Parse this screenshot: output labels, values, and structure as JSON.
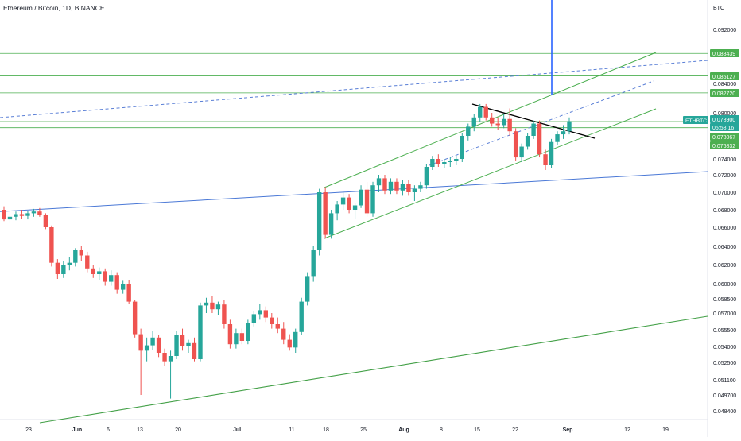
{
  "chart_data": {
    "type": "candlestick",
    "title": "Ethereum / Bitcoin, 1D, BINANCE",
    "y_axis_unit": "BTC",
    "y_ticks": [
      "0.092000",
      "0.084000",
      "0.080000",
      "0.074000",
      "0.072000",
      "0.070000",
      "0.068000",
      "0.066000",
      "0.064000",
      "0.062000",
      "0.060000",
      "0.058500",
      "0.057000",
      "0.055500",
      "0.054000",
      "0.052500",
      "0.051100",
      "0.049700",
      "0.048400"
    ],
    "x_ticks": [
      "23",
      "Jun",
      "6",
      "13",
      "20",
      "Jul",
      "11",
      "18",
      "25",
      "Aug",
      "8",
      "15",
      "22",
      "Sep",
      "12",
      "19"
    ],
    "price_labels": [
      {
        "text": "0.088439",
        "kind": "level"
      },
      {
        "text": "0.085127",
        "kind": "level"
      },
      {
        "text": "0.082720",
        "kind": "level"
      },
      {
        "text": "0.078900",
        "kind": "current"
      },
      {
        "text": "05:58:16",
        "kind": "timer"
      },
      {
        "text": "0.078067",
        "kind": "level"
      },
      {
        "text": "0.076832",
        "kind": "level"
      }
    ],
    "symbol_tag": "ETHBTC",
    "horizontal_levels": [
      0.088439,
      0.085127,
      0.08272,
      0.0789,
      0.078067,
      0.076832
    ],
    "candles": [
      {
        "o": 0.068,
        "h": 0.0684,
        "l": 0.0667,
        "c": 0.0669
      },
      {
        "o": 0.0669,
        "h": 0.0675,
        "l": 0.0665,
        "c": 0.0672
      },
      {
        "o": 0.0672,
        "h": 0.0678,
        "l": 0.0668,
        "c": 0.0675
      },
      {
        "o": 0.0675,
        "h": 0.068,
        "l": 0.067,
        "c": 0.0673
      },
      {
        "o": 0.0673,
        "h": 0.0679,
        "l": 0.0669,
        "c": 0.0676
      },
      {
        "o": 0.0676,
        "h": 0.0681,
        "l": 0.0672,
        "c": 0.0678
      },
      {
        "o": 0.0678,
        "h": 0.0682,
        "l": 0.0672,
        "c": 0.0674
      },
      {
        "o": 0.0674,
        "h": 0.0676,
        "l": 0.0658,
        "c": 0.066
      },
      {
        "o": 0.066,
        "h": 0.0662,
        "l": 0.0618,
        "c": 0.0622
      },
      {
        "o": 0.0622,
        "h": 0.0626,
        "l": 0.0605,
        "c": 0.061
      },
      {
        "o": 0.061,
        "h": 0.0624,
        "l": 0.0606,
        "c": 0.062
      },
      {
        "o": 0.062,
        "h": 0.0628,
        "l": 0.0614,
        "c": 0.0622
      },
      {
        "o": 0.0622,
        "h": 0.0638,
        "l": 0.0618,
        "c": 0.0636
      },
      {
        "o": 0.0636,
        "h": 0.064,
        "l": 0.0624,
        "c": 0.063
      },
      {
        "o": 0.063,
        "h": 0.0634,
        "l": 0.0612,
        "c": 0.0616
      },
      {
        "o": 0.0616,
        "h": 0.062,
        "l": 0.0606,
        "c": 0.061
      },
      {
        "o": 0.061,
        "h": 0.0617,
        "l": 0.0604,
        "c": 0.0613
      },
      {
        "o": 0.0613,
        "h": 0.0616,
        "l": 0.0598,
        "c": 0.0602
      },
      {
        "o": 0.0602,
        "h": 0.0614,
        "l": 0.0598,
        "c": 0.0609
      },
      {
        "o": 0.0609,
        "h": 0.0612,
        "l": 0.059,
        "c": 0.0594
      },
      {
        "o": 0.0594,
        "h": 0.0603,
        "l": 0.059,
        "c": 0.06
      },
      {
        "o": 0.06,
        "h": 0.0604,
        "l": 0.058,
        "c": 0.0582
      },
      {
        "o": 0.0582,
        "h": 0.0584,
        "l": 0.0548,
        "c": 0.0551
      },
      {
        "o": 0.0551,
        "h": 0.0556,
        "l": 0.0497,
        "c": 0.0536
      },
      {
        "o": 0.0536,
        "h": 0.0548,
        "l": 0.0526,
        "c": 0.0541
      },
      {
        "o": 0.0541,
        "h": 0.0554,
        "l": 0.0537,
        "c": 0.0548
      },
      {
        "o": 0.0548,
        "h": 0.055,
        "l": 0.053,
        "c": 0.0534
      },
      {
        "o": 0.0534,
        "h": 0.0538,
        "l": 0.0522,
        "c": 0.0526
      },
      {
        "o": 0.0526,
        "h": 0.0536,
        "l": 0.0494,
        "c": 0.0531
      },
      {
        "o": 0.0531,
        "h": 0.0554,
        "l": 0.0528,
        "c": 0.055
      },
      {
        "o": 0.055,
        "h": 0.0556,
        "l": 0.0536,
        "c": 0.054
      },
      {
        "o": 0.054,
        "h": 0.0546,
        "l": 0.0534,
        "c": 0.0543
      },
      {
        "o": 0.0543,
        "h": 0.0548,
        "l": 0.0526,
        "c": 0.0528
      },
      {
        "o": 0.0528,
        "h": 0.0581,
        "l": 0.0526,
        "c": 0.0578
      },
      {
        "o": 0.0578,
        "h": 0.0586,
        "l": 0.057,
        "c": 0.0581
      },
      {
        "o": 0.0581,
        "h": 0.0588,
        "l": 0.057,
        "c": 0.0574
      },
      {
        "o": 0.0574,
        "h": 0.0582,
        "l": 0.0568,
        "c": 0.0579
      },
      {
        "o": 0.0579,
        "h": 0.0584,
        "l": 0.0556,
        "c": 0.056
      },
      {
        "o": 0.056,
        "h": 0.0564,
        "l": 0.0538,
        "c": 0.0542
      },
      {
        "o": 0.0542,
        "h": 0.0556,
        "l": 0.0538,
        "c": 0.0552
      },
      {
        "o": 0.0552,
        "h": 0.0556,
        "l": 0.0542,
        "c": 0.0545
      },
      {
        "o": 0.0545,
        "h": 0.0564,
        "l": 0.0542,
        "c": 0.0561
      },
      {
        "o": 0.0561,
        "h": 0.0572,
        "l": 0.0558,
        "c": 0.0569
      },
      {
        "o": 0.0569,
        "h": 0.058,
        "l": 0.0564,
        "c": 0.0573
      },
      {
        "o": 0.0573,
        "h": 0.0577,
        "l": 0.0562,
        "c": 0.0566
      },
      {
        "o": 0.0566,
        "h": 0.057,
        "l": 0.0556,
        "c": 0.056
      },
      {
        "o": 0.056,
        "h": 0.0566,
        "l": 0.0552,
        "c": 0.0556
      },
      {
        "o": 0.0556,
        "h": 0.0562,
        "l": 0.0542,
        "c": 0.0546
      },
      {
        "o": 0.0546,
        "h": 0.0551,
        "l": 0.0536,
        "c": 0.0539
      },
      {
        "o": 0.0539,
        "h": 0.0556,
        "l": 0.0534,
        "c": 0.0553
      },
      {
        "o": 0.0553,
        "h": 0.0586,
        "l": 0.055,
        "c": 0.0582
      },
      {
        "o": 0.0582,
        "h": 0.0612,
        "l": 0.0578,
        "c": 0.0608
      },
      {
        "o": 0.0608,
        "h": 0.064,
        "l": 0.0602,
        "c": 0.0636
      },
      {
        "o": 0.0636,
        "h": 0.0704,
        "l": 0.063,
        "c": 0.07
      },
      {
        "o": 0.07,
        "h": 0.0706,
        "l": 0.0648,
        "c": 0.0652
      },
      {
        "o": 0.0652,
        "h": 0.068,
        "l": 0.0648,
        "c": 0.0676
      },
      {
        "o": 0.0676,
        "h": 0.069,
        "l": 0.0668,
        "c": 0.0686
      },
      {
        "o": 0.0686,
        "h": 0.07,
        "l": 0.068,
        "c": 0.0694
      },
      {
        "o": 0.0694,
        "h": 0.0698,
        "l": 0.0676,
        "c": 0.068
      },
      {
        "o": 0.068,
        "h": 0.0688,
        "l": 0.067,
        "c": 0.0685
      },
      {
        "o": 0.0685,
        "h": 0.0708,
        "l": 0.0682,
        "c": 0.0703
      },
      {
        "o": 0.0703,
        "h": 0.0712,
        "l": 0.0672,
        "c": 0.0676
      },
      {
        "o": 0.0676,
        "h": 0.0712,
        "l": 0.0672,
        "c": 0.0708
      },
      {
        "o": 0.0708,
        "h": 0.072,
        "l": 0.07,
        "c": 0.0716
      },
      {
        "o": 0.0716,
        "h": 0.072,
        "l": 0.0698,
        "c": 0.0702
      },
      {
        "o": 0.0702,
        "h": 0.0716,
        "l": 0.0698,
        "c": 0.0712
      },
      {
        "o": 0.0712,
        "h": 0.0716,
        "l": 0.0698,
        "c": 0.0702
      },
      {
        "o": 0.0702,
        "h": 0.0714,
        "l": 0.0696,
        "c": 0.071
      },
      {
        "o": 0.071,
        "h": 0.0714,
        "l": 0.0696,
        "c": 0.07
      },
      {
        "o": 0.07,
        "h": 0.0708,
        "l": 0.069,
        "c": 0.0704
      },
      {
        "o": 0.0704,
        "h": 0.0712,
        "l": 0.07,
        "c": 0.0708
      },
      {
        "o": 0.0708,
        "h": 0.0734,
        "l": 0.0704,
        "c": 0.073
      },
      {
        "o": 0.073,
        "h": 0.0744,
        "l": 0.0726,
        "c": 0.074
      },
      {
        "o": 0.074,
        "h": 0.0746,
        "l": 0.073,
        "c": 0.0734
      },
      {
        "o": 0.0734,
        "h": 0.074,
        "l": 0.0728,
        "c": 0.0736
      },
      {
        "o": 0.0736,
        "h": 0.0742,
        "l": 0.073,
        "c": 0.0738
      },
      {
        "o": 0.0738,
        "h": 0.0744,
        "l": 0.0732,
        "c": 0.074
      },
      {
        "o": 0.074,
        "h": 0.0774,
        "l": 0.0736,
        "c": 0.077
      },
      {
        "o": 0.077,
        "h": 0.0786,
        "l": 0.0764,
        "c": 0.0782
      },
      {
        "o": 0.0782,
        "h": 0.0798,
        "l": 0.0776,
        "c": 0.0794
      },
      {
        "o": 0.0794,
        "h": 0.0812,
        "l": 0.0788,
        "c": 0.0808
      },
      {
        "o": 0.0808,
        "h": 0.0812,
        "l": 0.079,
        "c": 0.0794
      },
      {
        "o": 0.0794,
        "h": 0.08,
        "l": 0.0782,
        "c": 0.0786
      },
      {
        "o": 0.0786,
        "h": 0.0794,
        "l": 0.0778,
        "c": 0.0784
      },
      {
        "o": 0.0784,
        "h": 0.0798,
        "l": 0.078,
        "c": 0.0792
      },
      {
        "o": 0.0792,
        "h": 0.0806,
        "l": 0.077,
        "c": 0.0776
      },
      {
        "o": 0.0776,
        "h": 0.078,
        "l": 0.0738,
        "c": 0.0742
      },
      {
        "o": 0.0742,
        "h": 0.076,
        "l": 0.0736,
        "c": 0.0756
      },
      {
        "o": 0.0756,
        "h": 0.0774,
        "l": 0.0752,
        "c": 0.077
      },
      {
        "o": 0.077,
        "h": 0.079,
        "l": 0.0766,
        "c": 0.0786
      },
      {
        "o": 0.0786,
        "h": 0.079,
        "l": 0.0742,
        "c": 0.0746
      },
      {
        "o": 0.0746,
        "h": 0.0752,
        "l": 0.0726,
        "c": 0.0732
      },
      {
        "o": 0.0732,
        "h": 0.0766,
        "l": 0.0728,
        "c": 0.0762
      },
      {
        "o": 0.0762,
        "h": 0.0776,
        "l": 0.0758,
        "c": 0.0772
      },
      {
        "o": 0.0772,
        "h": 0.0784,
        "l": 0.0766,
        "c": 0.0776
      },
      {
        "o": 0.0776,
        "h": 0.0794,
        "l": 0.0772,
        "c": 0.0789
      }
    ]
  },
  "colors": {
    "up": "#26a69a",
    "down": "#ef5350",
    "level_line": "#4caf50",
    "trend_blue": "#2962ff",
    "resistance": "#000000",
    "axis_text": "#131722",
    "label_bg_green": "#4caf50",
    "label_bg_current": "#26a69a"
  }
}
